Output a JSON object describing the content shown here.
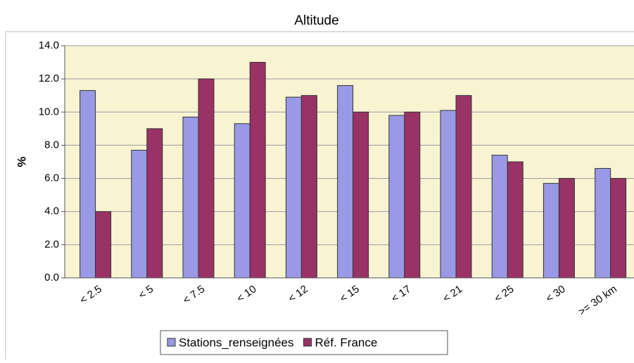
{
  "chart_data": {
    "type": "bar",
    "title": "Altitude",
    "y_label": "%",
    "categories": [
      "< 2.5",
      "< 5",
      "< 7.5",
      "< 10",
      "< 12",
      "< 15",
      "< 17",
      "< 21",
      "< 25",
      "< 30",
      ">= 30 km"
    ],
    "series": [
      {
        "name": "Stations_renseignées",
        "color": "#9999e6",
        "values": [
          11.3,
          7.7,
          9.7,
          9.3,
          10.9,
          11.6,
          9.8,
          10.1,
          7.4,
          5.7,
          6.6
        ]
      },
      {
        "name": "Réf. France",
        "color": "#993366",
        "values": [
          4.0,
          9.0,
          12.0,
          13.0,
          11.0,
          10.0,
          10.0,
          11.0,
          7.0,
          6.0,
          6.0
        ]
      }
    ],
    "ylim": [
      0,
      14
    ],
    "yticks": [
      {
        "value": 0,
        "label": "0.0"
      },
      {
        "value": 2,
        "label": "2.0"
      },
      {
        "value": 4,
        "label": "4.0"
      },
      {
        "value": 6,
        "label": "6.0"
      },
      {
        "value": 8,
        "label": "8.0"
      },
      {
        "value": 10,
        "label": "10.0"
      },
      {
        "value": 12,
        "label": "12.0"
      },
      {
        "value": 14,
        "label": "14.0"
      }
    ],
    "grid": true,
    "legend": "bottom"
  }
}
